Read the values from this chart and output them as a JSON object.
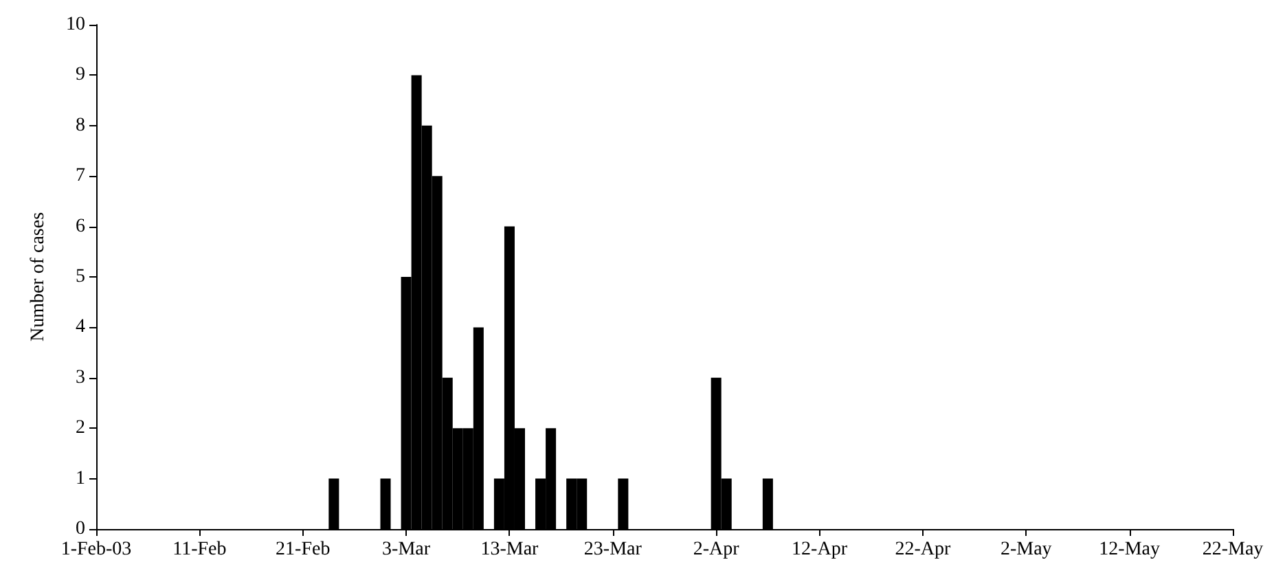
{
  "chart_data": {
    "type": "bar",
    "ylabel": "Number of cases",
    "x": [
      "--02-24",
      "--03-01",
      "--03-03",
      "--03-04",
      "--03-05",
      "--03-06",
      "--03-07",
      "--03-08",
      "--03-09",
      "--03-10",
      "--03-12",
      "--03-13",
      "--03-14",
      "--03-16",
      "--03-17",
      "--03-19",
      "--03-20",
      "--03-24",
      "--04-02",
      "--04-03",
      "--04-07"
    ],
    "values": [
      1,
      1,
      5,
      9,
      8,
      7,
      3,
      2,
      2,
      4,
      1,
      6,
      2,
      1,
      2,
      1,
      1,
      1,
      3,
      1,
      1
    ],
    "color": "#000000",
    "xlim": [
      "--02-01",
      "--05-22"
    ],
    "xticks": [
      {
        "value": "--02-01",
        "label": "1-Feb-03"
      },
      {
        "value": "--02-11",
        "label": "11-Feb"
      },
      {
        "value": "--02-21",
        "label": "21-Feb"
      },
      {
        "value": "--03-03",
        "label": "3-Mar"
      },
      {
        "value": "--03-13",
        "label": "13-Mar"
      },
      {
        "value": "--03-23",
        "label": "23-Mar"
      },
      {
        "value": "--04-02",
        "label": "2-Apr"
      },
      {
        "value": "--04-12",
        "label": "12-Apr"
      },
      {
        "value": "--04-22",
        "label": "22-Apr"
      },
      {
        "value": "--05-02",
        "label": "2-May"
      },
      {
        "value": "--05-12",
        "label": "12-May"
      },
      {
        "value": "--05-22",
        "label": "22-May"
      }
    ],
    "ylim": [
      0,
      10
    ],
    "yticks": [
      0,
      1,
      2,
      3,
      4,
      5,
      6,
      7,
      8,
      9,
      10
    ],
    "grid": false
  }
}
